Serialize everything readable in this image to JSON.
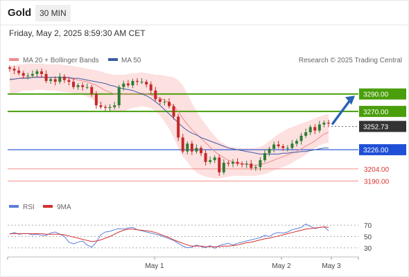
{
  "header": {
    "title": "Gold",
    "timeframe": "30 MIN",
    "timestamp": "Friday, May 2, 2025 8:59:30 AM CET"
  },
  "colors": {
    "resistance": "#4a9e0c",
    "support": "#1f4fd6",
    "minor_support": "#f08a8a",
    "price_tag": "#333333",
    "band_fill": "#fde0e0",
    "ma20": "#f08a8a",
    "ma50": "#3b5ba5",
    "candle_up": "#2e7d32",
    "candle_down": "#c62828",
    "rsi": "#5b7fd6",
    "rsi_ma": "#d32f2f",
    "arrow": "#2a62b5"
  },
  "chart_data": [
    {
      "type": "candlestick",
      "legend": [
        {
          "name": "MA 20 + Bollinger Bands",
          "color": "#f08a8a"
        },
        {
          "name": "MA 50",
          "color": "#3b5ba5"
        }
      ],
      "source": "Research © 2025 Trading Central",
      "ylim": [
        3180,
        3320
      ],
      "x_labels": [
        "May 1",
        "May 2",
        "May 3"
      ],
      "levels": [
        {
          "label": "3290.00",
          "value": 3290,
          "kind": "resistance"
        },
        {
          "label": "3270.00",
          "value": 3270,
          "kind": "resistance"
        },
        {
          "label": "3252.73",
          "value": 3252.73,
          "kind": "price"
        },
        {
          "label": "3226.00",
          "value": 3226,
          "kind": "support"
        },
        {
          "label": "3204.00",
          "value": 3204,
          "kind": "minor_support"
        },
        {
          "label": "3190.00",
          "value": 3190,
          "kind": "minor_support"
        }
      ],
      "close": [
        3319,
        3317,
        3314,
        3311,
        3311,
        3313,
        3316,
        3313,
        3305,
        3307,
        3304,
        3310,
        3306,
        3304,
        3298,
        3300,
        3298,
        3298,
        3290,
        3277,
        3275,
        3274,
        3275,
        3277,
        3298,
        3302,
        3300,
        3305,
        3304,
        3304,
        3301,
        3294,
        3284,
        3281,
        3281,
        3276,
        3264,
        3240,
        3224,
        3233,
        3224,
        3228,
        3222,
        3212,
        3214,
        3217,
        3200,
        3211,
        3210,
        3212,
        3210,
        3209,
        3210,
        3205,
        3206,
        3214,
        3222,
        3227,
        3232,
        3230,
        3228,
        3228,
        3233,
        3236,
        3242,
        3246,
        3252,
        3248,
        3255,
        3257,
        3256
      ],
      "ma20": [
        3306,
        3307,
        3308,
        3309,
        3309,
        3309,
        3310,
        3310,
        3309,
        3309,
        3309,
        3309,
        3309,
        3308,
        3307,
        3306,
        3305,
        3304,
        3302,
        3300,
        3297,
        3294,
        3292,
        3290,
        3289,
        3290,
        3290,
        3290,
        3290,
        3291,
        3290,
        3289,
        3287,
        3285,
        3283,
        3280,
        3276,
        3270,
        3262,
        3255,
        3249,
        3244,
        3239,
        3234,
        3229,
        3224,
        3220,
        3217,
        3214,
        3212,
        3210,
        3210,
        3209,
        3209,
        3208,
        3209,
        3210,
        3212,
        3214,
        3216,
        3218,
        3220,
        3222,
        3224,
        3227,
        3230,
        3233,
        3236,
        3240,
        3244,
        3246
      ],
      "bb_upper": [
        3322,
        3323,
        3324,
        3324,
        3325,
        3325,
        3325,
        3325,
        3324,
        3324,
        3324,
        3324,
        3323,
        3323,
        3322,
        3321,
        3320,
        3319,
        3318,
        3317,
        3316,
        3314,
        3313,
        3312,
        3312,
        3312,
        3313,
        3314,
        3314,
        3315,
        3314,
        3313,
        3312,
        3312,
        3311,
        3310,
        3309,
        3306,
        3300,
        3290,
        3280,
        3270,
        3262,
        3255,
        3248,
        3242,
        3236,
        3233,
        3230,
        3229,
        3228,
        3228,
        3228,
        3228,
        3228,
        3229,
        3232,
        3236,
        3240,
        3244,
        3247,
        3250,
        3252,
        3254,
        3256,
        3258,
        3260,
        3262,
        3264,
        3266,
        3267
      ],
      "bb_lower": [
        3290,
        3291,
        3292,
        3294,
        3294,
        3294,
        3295,
        3295,
        3294,
        3294,
        3294,
        3293,
        3292,
        3292,
        3291,
        3290,
        3289,
        3287,
        3284,
        3281,
        3277,
        3274,
        3271,
        3270,
        3270,
        3270,
        3272,
        3274,
        3275,
        3276,
        3275,
        3274,
        3270,
        3265,
        3258,
        3250,
        3240,
        3228,
        3218,
        3212,
        3205,
        3200,
        3197,
        3195,
        3194,
        3193,
        3193,
        3194,
        3195,
        3196,
        3196,
        3196,
        3196,
        3196,
        3196,
        3197,
        3198,
        3200,
        3202,
        3204,
        3206,
        3208,
        3211,
        3214,
        3217,
        3220,
        3224,
        3228,
        3231,
        3233,
        3234
      ],
      "ma50": [
        3307,
        3307,
        3308,
        3308,
        3308,
        3309,
        3309,
        3309,
        3309,
        3309,
        3309,
        3309,
        3309,
        3309,
        3308,
        3308,
        3307,
        3306,
        3305,
        3304,
        3303,
        3302,
        3300,
        3299,
        3297,
        3296,
        3295,
        3294,
        3292,
        3290,
        3288,
        3285,
        3281,
        3277,
        3272,
        3267,
        3262,
        3257,
        3252,
        3248,
        3245,
        3243,
        3240,
        3238,
        3236,
        3234,
        3232,
        3230,
        3228,
        3227,
        3226,
        3225,
        3224,
        3223,
        3222,
        3221,
        3221,
        3221,
        3221,
        3221,
        3222,
        3222,
        3223,
        3223,
        3224,
        3224,
        3225,
        3226,
        3227,
        3228,
        3228
      ]
    },
    {
      "type": "line",
      "legend": [
        {
          "name": "RSI",
          "color": "#5b7fd6"
        },
        {
          "name": "9MA",
          "color": "#d32f2f"
        }
      ],
      "ylim": [
        20,
        80
      ],
      "yticks": [
        30,
        50,
        70
      ],
      "rsi": [
        54,
        57,
        54,
        55,
        55,
        53,
        54,
        52,
        52,
        56,
        58,
        54,
        50,
        40,
        37,
        40,
        42,
        35,
        31,
        40,
        53,
        58,
        59,
        62,
        64,
        63,
        65,
        66,
        62,
        60,
        58,
        56,
        54,
        52,
        49,
        46,
        43,
        38,
        33,
        30,
        31,
        35,
        32,
        30,
        34,
        29,
        34,
        36,
        38,
        35,
        38,
        40,
        42,
        44,
        46,
        48,
        52,
        50,
        55,
        57,
        56,
        58,
        62,
        64,
        66,
        72,
        68,
        64,
        66,
        67,
        60
      ],
      "rsi_ma": [
        55,
        55,
        55,
        55,
        55,
        55,
        55,
        55,
        54,
        54,
        54,
        54,
        53,
        51,
        49,
        47,
        45,
        43,
        41,
        42,
        44,
        47,
        50,
        54,
        58,
        61,
        63,
        63,
        62,
        61,
        60,
        59,
        57,
        54,
        51,
        48,
        44,
        41,
        38,
        35,
        33,
        33,
        33,
        32,
        32,
        32,
        32,
        33,
        33,
        34,
        35,
        37,
        39,
        40,
        42,
        44,
        46,
        47,
        49,
        51,
        53,
        55,
        57,
        59,
        61,
        63,
        64,
        65,
        66,
        67,
        66
      ]
    }
  ]
}
